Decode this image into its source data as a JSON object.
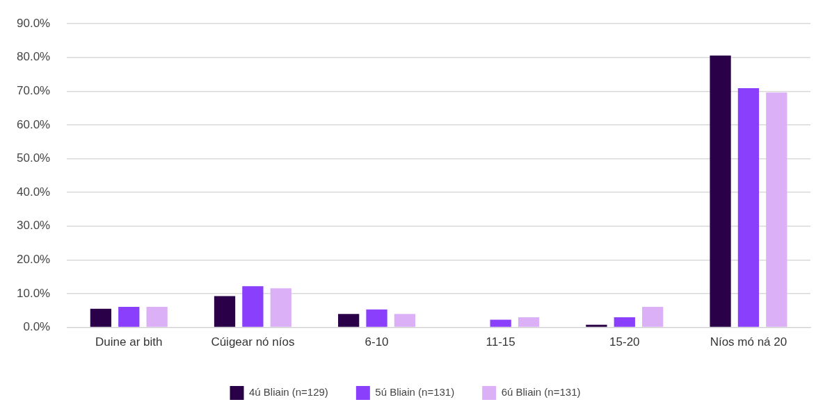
{
  "chart_data": {
    "type": "bar",
    "categories": [
      "Duine ar bith",
      "Cúigear nó níos",
      "6-10",
      "11-15",
      "15-20",
      "Níos mó ná 20"
    ],
    "series": [
      {
        "name": "4ú Bliain (n=129)",
        "color": "#2a0049",
        "values": [
          5.5,
          9.3,
          4.0,
          0,
          0.8,
          80.6
        ]
      },
      {
        "name": "5ú Bliain (n=131)",
        "color": "#8a3ffc",
        "values": [
          6.1,
          12.2,
          5.3,
          2.3,
          3.0,
          70.9
        ]
      },
      {
        "name": "6ú Bliain (n=131)",
        "color": "#dcb0f7",
        "values": [
          6.1,
          11.6,
          4.0,
          3.0,
          6.1,
          69.6
        ]
      }
    ],
    "ylim": [
      0,
      90
    ],
    "yticks": [
      {
        "value": 0,
        "label": "0.0%"
      },
      {
        "value": 10,
        "label": "10.0%"
      },
      {
        "value": 20,
        "label": "20.0%"
      },
      {
        "value": 30,
        "label": "30.0%"
      },
      {
        "value": 40,
        "label": "40.0%"
      },
      {
        "value": 50,
        "label": "50.0%"
      },
      {
        "value": 60,
        "label": "60.0%"
      },
      {
        "value": 70,
        "label": "70.0%"
      },
      {
        "value": 80,
        "label": "80.0%"
      },
      {
        "value": 90,
        "label": "90.0%"
      }
    ],
    "grid": "y",
    "legend": "bottom"
  }
}
